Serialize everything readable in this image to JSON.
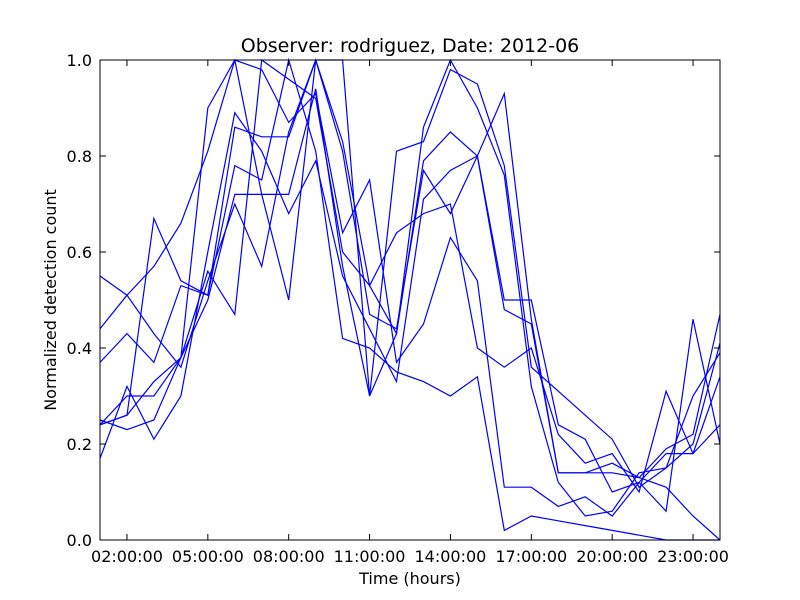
{
  "chart_data": {
    "type": "line",
    "title": "Observer: rodriguez, Date: 2012-06",
    "xlabel": "Time (hours)",
    "ylabel": "Normalized detection count",
    "xlim": [
      1,
      24
    ],
    "ylim": [
      0,
      1
    ],
    "grid": false,
    "legend": "none",
    "line_color": "#0000ff",
    "x_ticks": [
      {
        "value": 2,
        "label": "02:00:00"
      },
      {
        "value": 5,
        "label": "05:00:00"
      },
      {
        "value": 8,
        "label": "08:00:00"
      },
      {
        "value": 11,
        "label": "11:00:00"
      },
      {
        "value": 14,
        "label": "14:00:00"
      },
      {
        "value": 17,
        "label": "17:00:00"
      },
      {
        "value": 20,
        "label": "20:00:00"
      },
      {
        "value": 23,
        "label": "23:00:00"
      }
    ],
    "y_ticks": [
      {
        "value": 0,
        "label": "0.0"
      },
      {
        "value": 0.2,
        "label": "0.2"
      },
      {
        "value": 0.4,
        "label": "0.4"
      },
      {
        "value": 0.6,
        "label": "0.6"
      },
      {
        "value": 0.8,
        "label": "0.8"
      },
      {
        "value": 1.0,
        "label": "1.0"
      }
    ],
    "series": [
      {
        "x": [
          1,
          2,
          3,
          4,
          5,
          6,
          7,
          8,
          9,
          10,
          11,
          12,
          13,
          14,
          15,
          16,
          17,
          18,
          19,
          20,
          21,
          22,
          23,
          24
        ],
        "values": [
          0.55,
          0.51,
          0.43,
          0.36,
          0.54,
          0.7,
          0.57,
          0.85,
          1.0,
          0.83,
          0.53,
          0.64,
          0.68,
          0.7,
          0.4,
          0.36,
          0.4,
          0.22,
          0.16,
          0.18,
          0.1,
          0.31,
          0.18,
          0.24
        ]
      },
      {
        "x": [
          1,
          2,
          3,
          4,
          5,
          6,
          7,
          8,
          9,
          10,
          11,
          12,
          13,
          14,
          15,
          16,
          17,
          18,
          19,
          20,
          21,
          22,
          23,
          24
        ],
        "values": [
          0.44,
          0.51,
          0.57,
          0.66,
          0.81,
          1.0,
          0.98,
          0.87,
          0.93,
          0.64,
          0.75,
          0.37,
          0.45,
          0.63,
          0.54,
          0.11,
          0.11,
          0.07,
          0.09,
          0.05,
          0.12,
          0.06,
          0.46,
          0.2
        ]
      },
      {
        "x": [
          1,
          2,
          3,
          4,
          5,
          6,
          7,
          8,
          9,
          10,
          11,
          12,
          13,
          14,
          15,
          16,
          17,
          18,
          19,
          20,
          21,
          22,
          23,
          24
        ],
        "values": [
          0.37,
          0.43,
          0.37,
          0.53,
          0.51,
          0.86,
          0.84,
          0.84,
          1.0,
          0.81,
          0.47,
          0.44,
          0.77,
          0.68,
          0.8,
          0.5,
          0.5,
          0.24,
          0.21,
          0.1,
          0.12,
          0.18,
          0.18,
          0.34
        ]
      },
      {
        "x": [
          1,
          2,
          3,
          4,
          5,
          6,
          7,
          8,
          9,
          10,
          11,
          12,
          13,
          14,
          15,
          16,
          17,
          18,
          19,
          20,
          21,
          22,
          23,
          24
        ],
        "values": [
          0.24,
          0.26,
          0.33,
          0.38,
          0.9,
          1.0,
          0.72,
          0.72,
          0.94,
          0.57,
          0.3,
          0.81,
          0.83,
          0.98,
          0.95,
          0.78,
          0.36,
          0.31,
          0.26,
          0.21,
          0.11,
          0.15,
          0.3,
          0.39
        ]
      },
      {
        "x": [
          1,
          2,
          3,
          4,
          5,
          6,
          7,
          8,
          9,
          10,
          11,
          12,
          13,
          14,
          15,
          16,
          17,
          18,
          19,
          20,
          21,
          22,
          23,
          24
        ],
        "values": [
          0.24,
          0.3,
          0.3,
          0.38,
          0.56,
          0.47,
          1.0,
          0.96,
          0.92,
          0.6,
          0.53,
          0.43,
          0.86,
          1.0,
          0.9,
          0.76,
          0.32,
          0.12,
          0.05,
          0.06,
          0.14,
          0.15,
          0.2,
          0.41
        ]
      },
      {
        "x": [
          1,
          2,
          3,
          4,
          5,
          6,
          7,
          8,
          9,
          10,
          11,
          12,
          13,
          14,
          15,
          16,
          17,
          18,
          19,
          20,
          21,
          22,
          23,
          24
        ],
        "values": [
          0.24,
          0.26,
          0.67,
          0.54,
          0.51,
          0.78,
          0.75,
          1.0,
          0.81,
          0.42,
          0.4,
          0.35,
          0.33,
          0.3,
          0.34,
          0.02,
          0.05,
          0.04,
          0.03,
          0.02,
          0.01,
          0.0,
          0.0,
          0.0
        ]
      },
      {
        "x": [
          1,
          2,
          3,
          4,
          5,
          6,
          7,
          8,
          9,
          10,
          11,
          12,
          13,
          14,
          15,
          16,
          17,
          18,
          19,
          20,
          21,
          22,
          23,
          24
        ],
        "values": [
          0.17,
          0.32,
          0.21,
          0.3,
          0.6,
          0.89,
          0.81,
          0.68,
          0.79,
          0.55,
          0.44,
          0.33,
          0.71,
          0.77,
          0.8,
          0.93,
          0.46,
          0.14,
          0.14,
          0.16,
          0.13,
          0.19,
          0.22,
          0.47
        ]
      },
      {
        "x": [
          1,
          2,
          3,
          4,
          5,
          6,
          7,
          8,
          9,
          10,
          11,
          12,
          13,
          14,
          15,
          16,
          17,
          18,
          19,
          20,
          21,
          22,
          23,
          24
        ],
        "values": [
          0.25,
          0.23,
          0.25,
          0.38,
          0.5,
          0.72,
          0.72,
          0.5,
          1.0,
          1.0,
          0.3,
          0.43,
          0.79,
          0.85,
          0.8,
          0.48,
          0.45,
          0.14,
          0.14,
          0.14,
          0.13,
          0.11,
          0.05,
          0.0
        ]
      }
    ]
  }
}
